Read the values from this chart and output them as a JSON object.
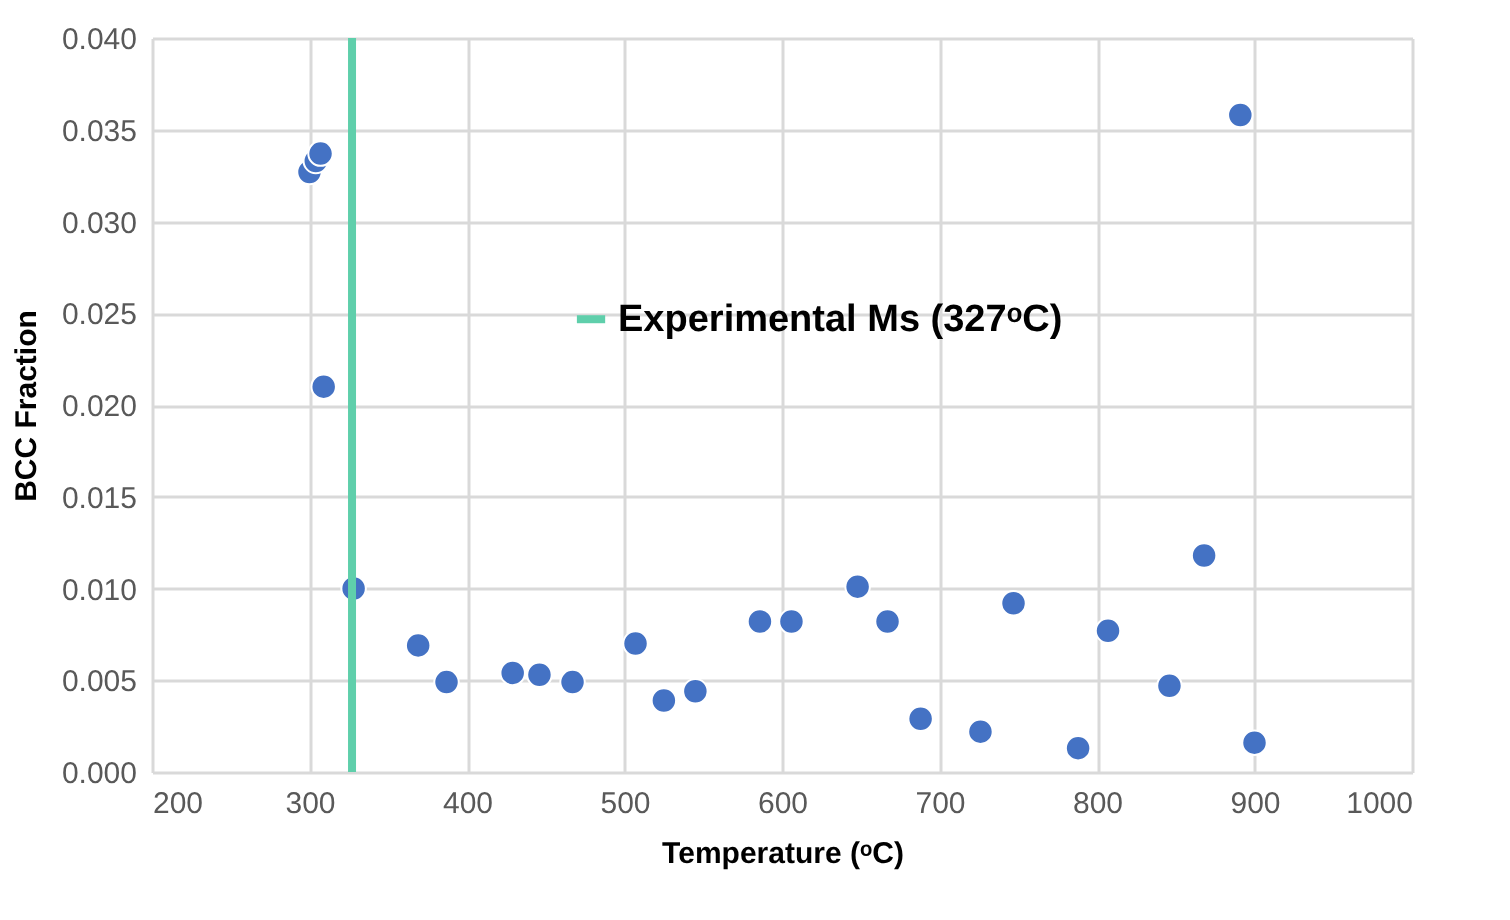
{
  "chart_data": {
    "type": "scatter",
    "xlabel": "Temperature (ᵒC)",
    "ylabel": "BCC Fraction",
    "x": [
      300,
      304,
      307,
      309,
      328,
      369,
      387,
      429,
      446,
      467,
      507,
      525,
      545,
      586,
      606,
      648,
      667,
      688,
      726,
      747,
      788,
      807,
      846,
      868,
      891,
      900
    ],
    "series": [
      {
        "color": "#4472c4",
        "values": [
          0.0327,
          0.0333,
          0.0337,
          0.021,
          0.01,
          0.0069,
          0.0049,
          0.0054,
          0.0053,
          0.0049,
          0.007,
          0.0039,
          0.0044,
          0.0082,
          0.0082,
          0.0101,
          0.0082,
          0.0029,
          0.0022,
          0.0092,
          0.0013,
          0.0077,
          0.0047,
          0.0118,
          0.0358,
          0.0016
        ]
      },
      {
        "type": "line",
        "name": "Experimental Ms (327ᵒC)",
        "color": "#5fcfab",
        "x": [
          327,
          327
        ],
        "values": [
          0,
          0.04
        ],
        "marker": "none"
      }
    ],
    "xlim": [
      200,
      1000
    ],
    "xticks": [
      200,
      300,
      400,
      500,
      600,
      700,
      800,
      900,
      1000
    ],
    "ylim": [
      0,
      0.04
    ],
    "yticks": [
      {
        "value": 0,
        "label": "0.000"
      },
      {
        "value": 0.005,
        "label": "0.005"
      },
      {
        "value": 0.01,
        "label": "0.010"
      },
      {
        "value": 0.015,
        "label": "0.015"
      },
      {
        "value": 0.02,
        "label": "0.020"
      },
      {
        "value": 0.025,
        "label": "0.025"
      },
      {
        "value": 0.03,
        "label": "0.030"
      },
      {
        "value": 0.035,
        "label": "0.035"
      },
      {
        "value": 0.04,
        "label": "0.040"
      }
    ],
    "grid": true,
    "legend": "top right",
    "marker": "circle"
  }
}
